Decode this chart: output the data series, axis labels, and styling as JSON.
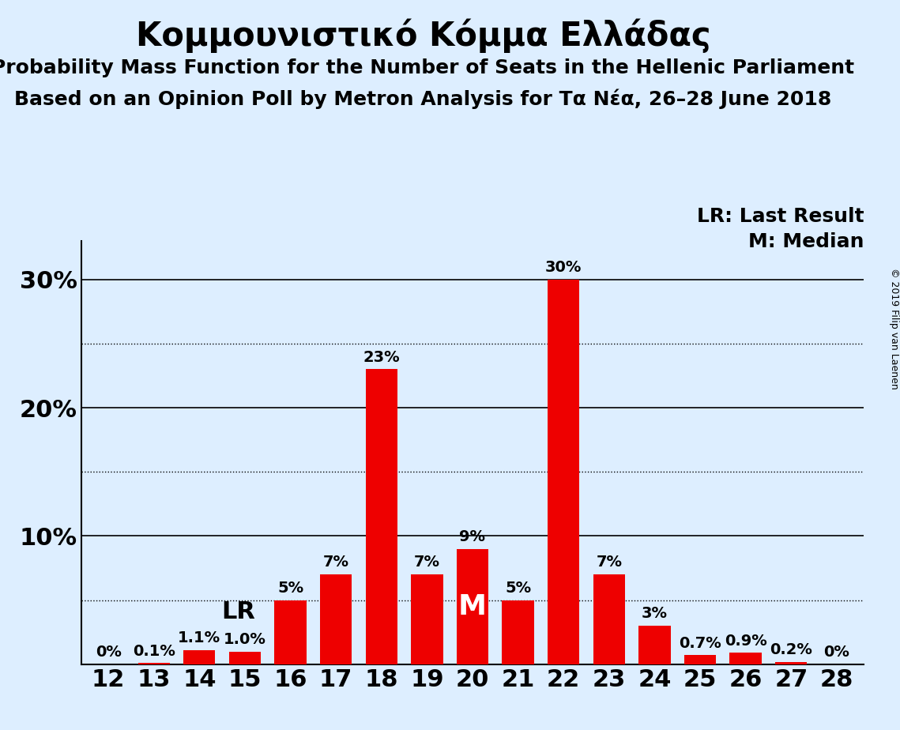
{
  "title": "Κομμουνιστικό Κόμμα Ελλάδας",
  "subtitle1": "Probability Mass Function for the Number of Seats in the Hellenic Parliament",
  "subtitle2": "Based on an Opinion Poll by Metron Analysis for Τα Νέα, 26–28 June 2018",
  "copyright": "© 2019 Filip van Laenen",
  "categories": [
    12,
    13,
    14,
    15,
    16,
    17,
    18,
    19,
    20,
    21,
    22,
    23,
    24,
    25,
    26,
    27,
    28
  ],
  "values": [
    0.0,
    0.1,
    1.1,
    1.0,
    5.0,
    7.0,
    23.0,
    7.0,
    9.0,
    5.0,
    30.0,
    7.0,
    3.0,
    0.7,
    0.9,
    0.2,
    0.0
  ],
  "labels": [
    "0%",
    "0.1%",
    "1.1%",
    "1.0%",
    "5%",
    "7%",
    "23%",
    "7%",
    "9%",
    "5%",
    "30%",
    "7%",
    "3%",
    "0.7%",
    "0.9%",
    "0.2%",
    "0%"
  ],
  "bar_color": "#ee0000",
  "background_color": "#ddeeff",
  "lr_seat": 15,
  "median_seat": 20,
  "ylim": [
    0,
    33
  ],
  "yticks": [
    10,
    20,
    30
  ],
  "ytick_labels": [
    "10%",
    "20%",
    "30%"
  ],
  "legend_lr": "LR: Last Result",
  "legend_m": "M: Median",
  "title_fontsize": 30,
  "subtitle_fontsize": 18,
  "axis_fontsize": 22,
  "bar_label_fontsize": 14,
  "legend_fontsize": 18
}
